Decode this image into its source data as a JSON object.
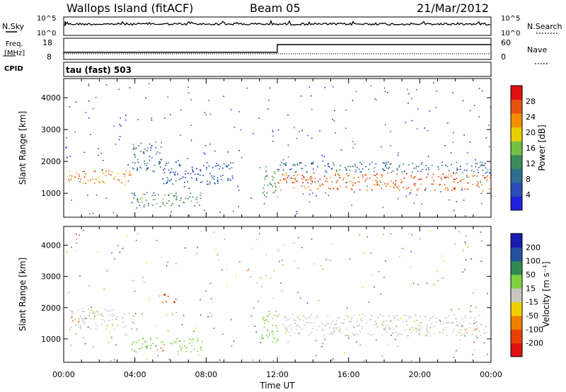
{
  "header": {
    "station": "Wallops Island (fitACF)",
    "beam": "Beam 05",
    "date": "21/Mar/2012"
  },
  "sky_panel": {
    "left_label": "N.Sky",
    "right_label": "N.Search",
    "left_ticks": [
      "10^5",
      "10^0"
    ],
    "right_ticks": [
      "10^5",
      "10^0"
    ]
  },
  "freq_panel": {
    "left_label_line1": "Freq.",
    "left_label_line2": "[MHz]",
    "cpid_label": "CPID",
    "right_label": "Nave",
    "left_ticks": [
      "18",
      "8"
    ],
    "right_ticks": [
      "60",
      "0"
    ],
    "mode_text": "tau (fast) 503"
  },
  "colors": {
    "power": [
      "#1f1fe0",
      "#2a4db8",
      "#2e6e8e",
      "#3a8a5a",
      "#76c043",
      "#e8d000",
      "#f09000",
      "#e85010",
      "#e01010"
    ],
    "velocity": [
      "#1a1ab0",
      "#2850a0",
      "#2e8a50",
      "#80d040",
      "#c8c8c0",
      "#f0d000",
      "#f08000",
      "#e84000",
      "#e01010"
    ],
    "scatter_gray": "#c8c8c0"
  },
  "chart_data": [
    {
      "type": "heatmap",
      "name": "power-panel",
      "ylabel": "Slant Range [km]",
      "yticks": [
        "4000",
        "3000",
        "2000",
        "1000"
      ],
      "ylim": [
        250,
        4600
      ],
      "xlim": [
        0,
        24
      ],
      "colorbar": {
        "label": "Power [dB]",
        "ticks": [
          "28",
          "24",
          "20",
          "16",
          "12",
          "8",
          "4"
        ],
        "range": [
          0,
          32
        ]
      },
      "echo_regions": [
        {
          "t0": 0.2,
          "t1": 3.8,
          "r0": 1300,
          "r1": 1750,
          "value": 24
        },
        {
          "t0": 3.8,
          "t1": 5.5,
          "r0": 1700,
          "r1": 2650,
          "value": 10
        },
        {
          "t0": 3.8,
          "t1": 7.8,
          "r0": 600,
          "r1": 1050,
          "value": 12
        },
        {
          "t0": 5.5,
          "t1": 9.5,
          "r0": 1300,
          "r1": 2000,
          "value": 6
        },
        {
          "t0": 11.0,
          "t1": 12.0,
          "r0": 900,
          "r1": 1900,
          "value": 14
        },
        {
          "t0": 12.0,
          "t1": 24.0,
          "r0": 1100,
          "r1": 1650,
          "value": 26
        },
        {
          "t0": 12.0,
          "t1": 24.0,
          "r0": 1650,
          "r1": 2000,
          "value": 8
        }
      ]
    },
    {
      "type": "heatmap",
      "name": "velocity-panel",
      "ylabel": "Slant Range [km]",
      "xlabel": "Time UT",
      "yticks": [
        "4000",
        "3000",
        "2000",
        "1000"
      ],
      "ylim": [
        250,
        4600
      ],
      "xlim": [
        0,
        24
      ],
      "xticks": [
        "00:00",
        "04:00",
        "08:00",
        "12:00",
        "16:00",
        "20:00",
        "00:00"
      ],
      "colorbar": {
        "label": "Velocity [m s⁻¹]",
        "ticks": [
          "200",
          "100",
          "50",
          "15",
          "-15",
          "-50",
          "-100",
          "-200"
        ]
      },
      "echo_regions": [
        {
          "t0": 0.2,
          "t1": 4.0,
          "r0": 1300,
          "r1": 2000,
          "value": 0
        },
        {
          "t0": 3.8,
          "t1": 7.8,
          "r0": 600,
          "r1": 1050,
          "value": 40
        },
        {
          "t0": 5.5,
          "t1": 6.3,
          "r0": 2100,
          "r1": 2450,
          "value": -180
        },
        {
          "t0": 11.0,
          "t1": 12.0,
          "r0": 900,
          "r1": 1900,
          "value": 30
        },
        {
          "t0": 12.0,
          "t1": 24.0,
          "r0": 1100,
          "r1": 1800,
          "value": 0
        }
      ]
    }
  ]
}
